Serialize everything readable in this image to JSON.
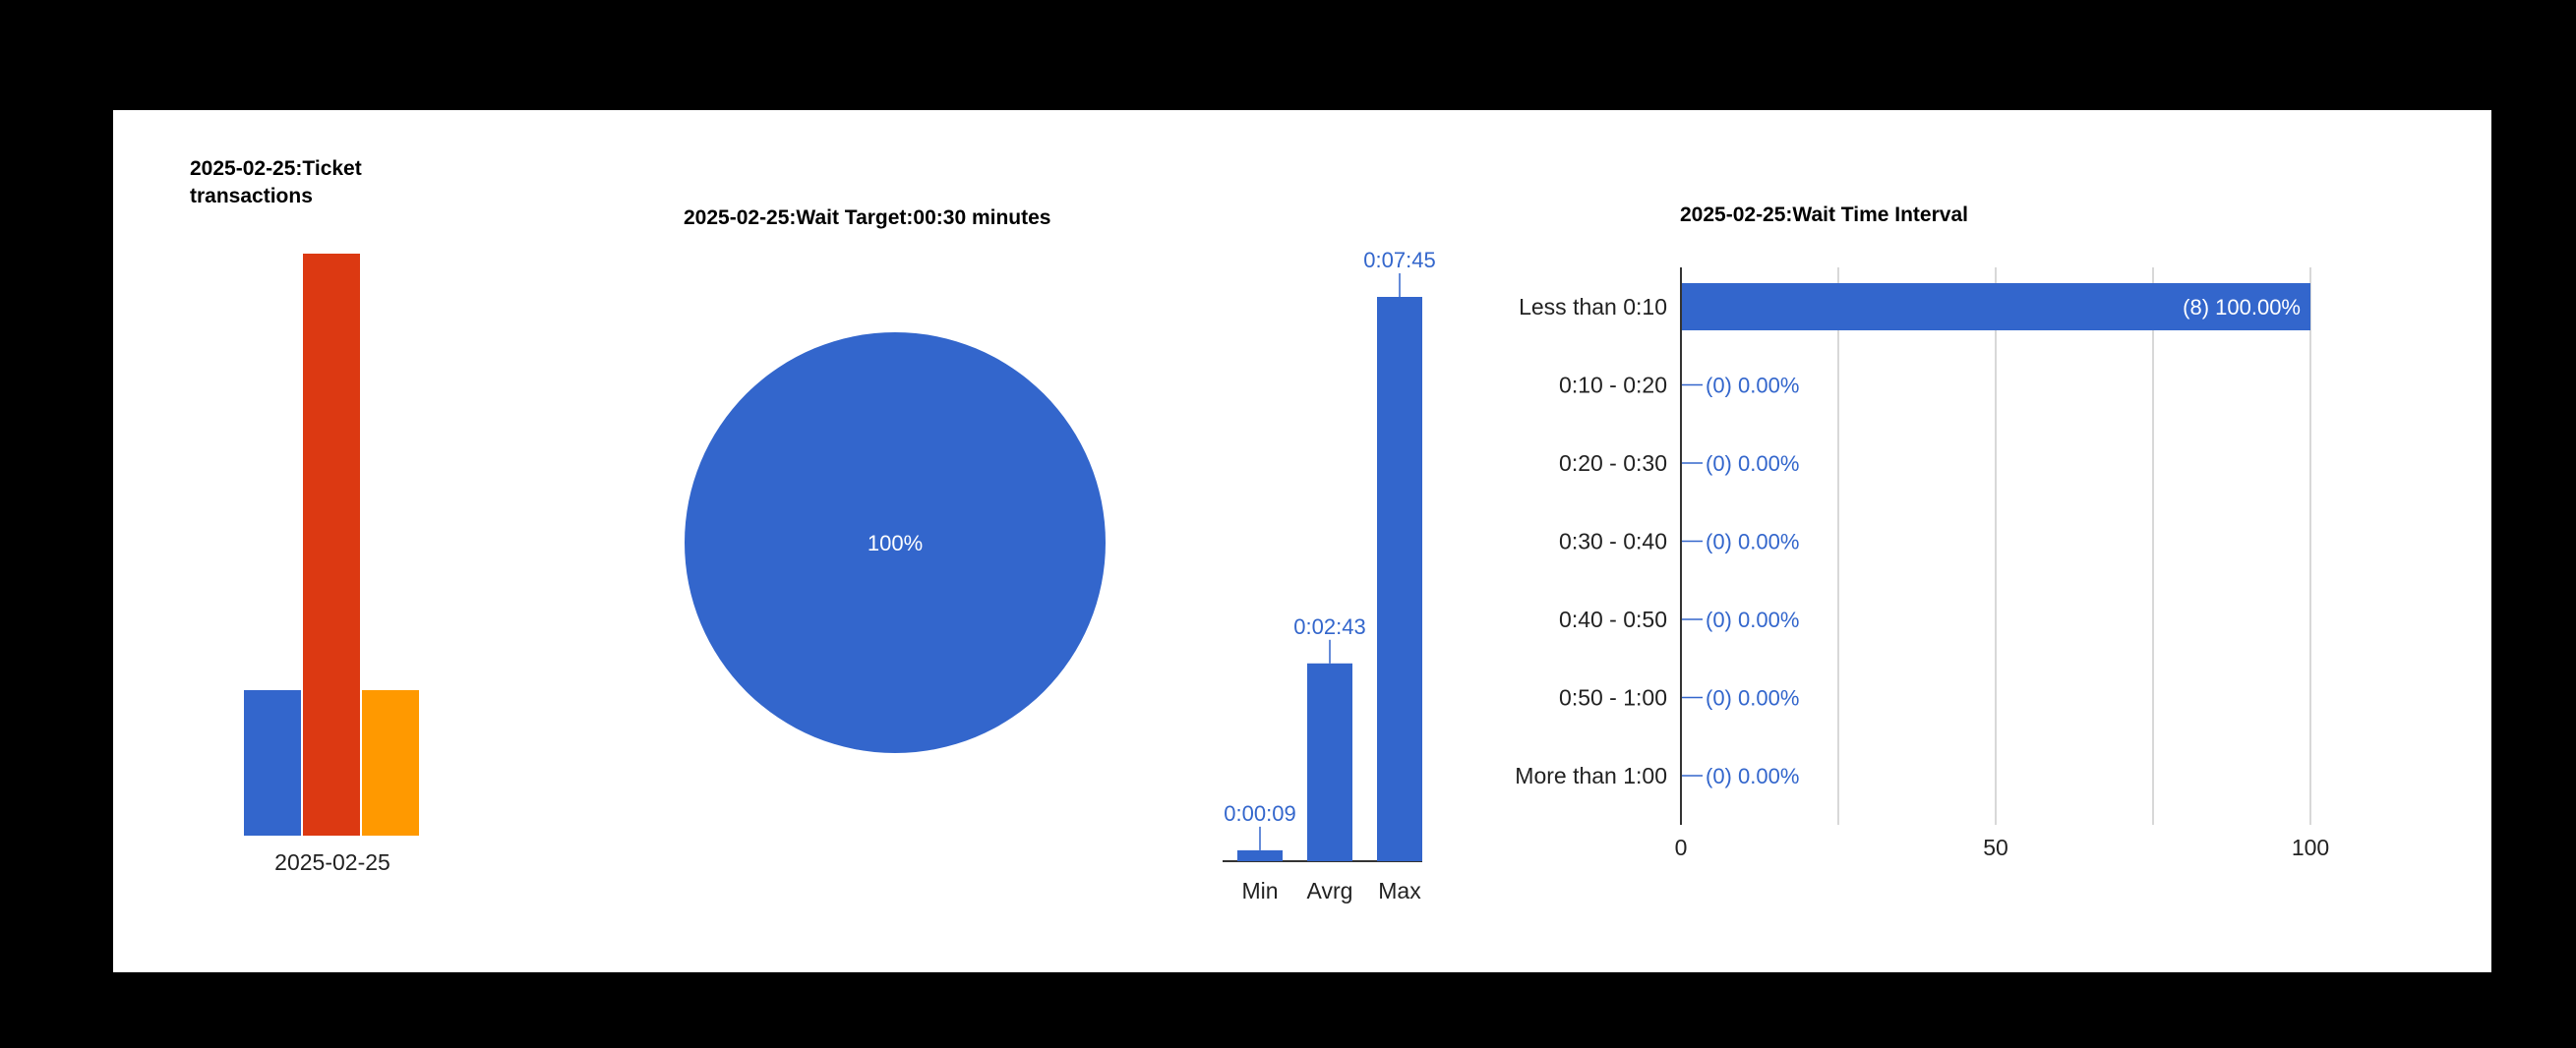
{
  "colors": {
    "blue": "#3366cc",
    "red": "#dc3912",
    "orange": "#ff9900",
    "grid": "#cccccc",
    "axis": "#333333"
  },
  "chart_data": [
    {
      "id": "ticket-transactions",
      "type": "bar",
      "title_lines": [
        "2025-02-25:Ticket",
        "transactions"
      ],
      "categories": [
        "2025-02-25"
      ],
      "series": [
        {
          "values": [
            1
          ],
          "color": "#3366cc"
        },
        {
          "values": [
            4
          ],
          "color": "#dc3912"
        },
        {
          "values": [
            1
          ],
          "color": "#ff9900"
        }
      ],
      "ylim": [
        0,
        4
      ],
      "grid": false,
      "legend": "none"
    },
    {
      "id": "wait-target",
      "type": "pie",
      "title": "2025-02-25:Wait Target:00:30 minutes",
      "slices": [
        {
          "value": 100,
          "label": "100%",
          "color": "#3366cc"
        }
      ],
      "legend": "none"
    },
    {
      "id": "wait-time-stats",
      "type": "bar",
      "title": "",
      "categories": [
        "Min",
        "Avrg",
        "Max"
      ],
      "values": [
        9,
        163,
        465
      ],
      "value_labels": [
        "0:00:09",
        "0:02:43",
        "0:07:45"
      ],
      "unit": "seconds",
      "ylim": [
        0,
        465
      ],
      "color": "#3366cc",
      "grid": false
    },
    {
      "id": "wait-time-interval",
      "type": "bar",
      "orientation": "horizontal",
      "title": "2025-02-25:Wait Time Interval",
      "categories": [
        "Less than 0:10",
        "0:10 - 0:20",
        "0:20 - 0:30",
        "0:30 - 0:40",
        "0:40 - 0:50",
        "0:50 - 1:00",
        "More than 1:00"
      ],
      "values": [
        100,
        0,
        0,
        0,
        0,
        0,
        0
      ],
      "value_labels": [
        "(8) 100.00%",
        "(0) 0.00%",
        "(0) 0.00%",
        "(0) 0.00%",
        "(0) 0.00%",
        "(0) 0.00%",
        "(0) 0.00%"
      ],
      "xlim": [
        0,
        100
      ],
      "xticks": [
        0,
        50,
        100
      ],
      "grid": true,
      "color": "#3366cc"
    }
  ]
}
